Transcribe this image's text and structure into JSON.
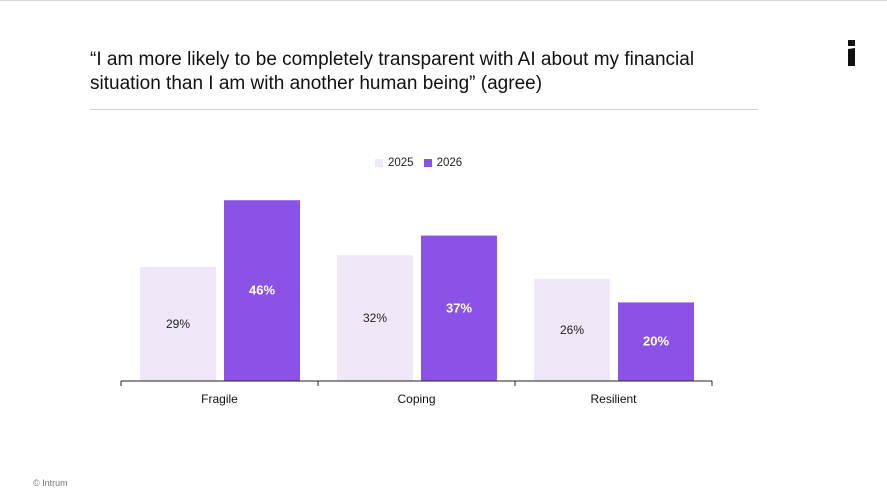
{
  "title": "“I am more likely to be completely transparent with AI about my financial situation than I am with another human being” (agree)",
  "footer": "© Intrum",
  "colors": {
    "series_2025": "#f0e7f9",
    "series_2026": "#8a53e6",
    "axis": "#222222",
    "rule": "#cfcfcf"
  },
  "chart_data": {
    "type": "bar",
    "categories": [
      "Fragile",
      "Coping",
      "Resilient"
    ],
    "series": [
      {
        "name": "2025",
        "values": [
          29,
          32,
          26
        ],
        "labels": [
          "29%",
          "32%",
          "26%"
        ]
      },
      {
        "name": "2026",
        "values": [
          46,
          37,
          20
        ],
        "labels": [
          "46%",
          "37%",
          "20%"
        ]
      }
    ],
    "ylim": [
      0,
      50
    ],
    "legend": "top-center",
    "grid": false,
    "unit": "%"
  }
}
